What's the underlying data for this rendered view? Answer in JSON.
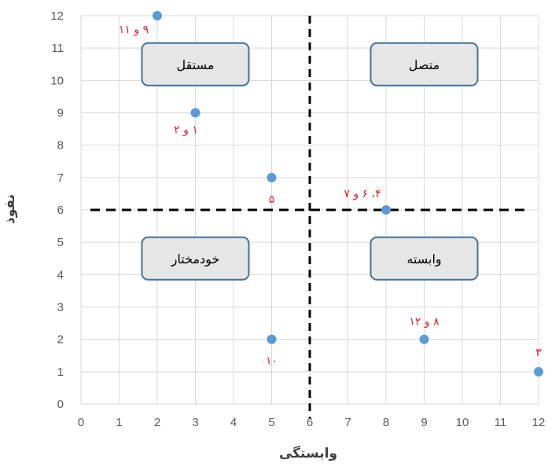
{
  "chart_data": {
    "type": "scatter",
    "xlabel": "وابستگی",
    "ylabel": "نفوذ",
    "xlim": [
      0,
      12
    ],
    "ylim": [
      0,
      12
    ],
    "xticks": [
      0,
      1,
      2,
      3,
      4,
      5,
      6,
      7,
      8,
      9,
      10,
      11,
      12
    ],
    "yticks": [
      0,
      1,
      2,
      3,
      4,
      5,
      6,
      7,
      8,
      9,
      10,
      11,
      12
    ],
    "grid": true,
    "points": [
      {
        "x": 2,
        "y": 12,
        "label": "۹ و ۱۱"
      },
      {
        "x": 3,
        "y": 9,
        "label": "۱ و ۲"
      },
      {
        "x": 5,
        "y": 7,
        "label": "۵"
      },
      {
        "x": 8,
        "y": 6,
        "label": "۴، ۶ و ۷"
      },
      {
        "x": 5,
        "y": 2,
        "label": "۱۰"
      },
      {
        "x": 9,
        "y": 2,
        "label": "۸ و ۱۲"
      },
      {
        "x": 12,
        "y": 1,
        "label": "۳"
      }
    ],
    "divider_x": 6,
    "divider_y": 6,
    "quadrants": [
      {
        "label": "مستقل",
        "x": 3,
        "y": 10.5
      },
      {
        "label": "متصل",
        "x": 9,
        "y": 10.5
      },
      {
        "label": "خودمختار",
        "x": 3,
        "y": 4.5
      },
      {
        "label": "وابسته",
        "x": 9,
        "y": 4.5
      }
    ],
    "colors": {
      "point": "#5b9bd5",
      "point_label": "#e0202a",
      "grid": "#d9d9d9",
      "divider": "#000000",
      "quadrant_fill": "#e7e6e6",
      "quadrant_border": "#41719c"
    }
  }
}
